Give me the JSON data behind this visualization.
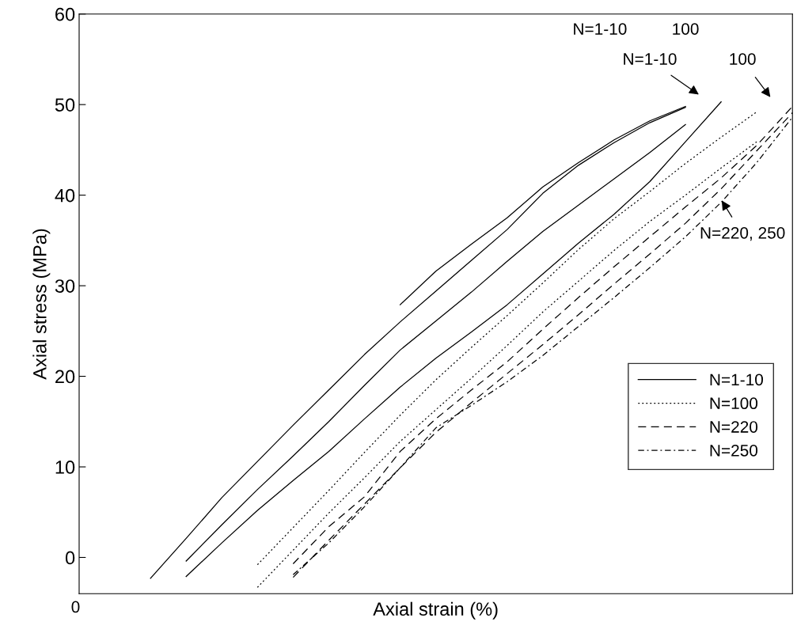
{
  "chart_data": {
    "type": "line",
    "xlabel": "Axial strain (%)",
    "ylabel": "Axial stress (MPa)",
    "categories": [
      null,
      null,
      null,
      null,
      null,
      null,
      null,
      null,
      null,
      null,
      null,
      null,
      null,
      null,
      null,
      null,
      null,
      null,
      null,
      null,
      null
    ],
    "ylim": [
      -4,
      60
    ],
    "yticks": [
      0,
      10,
      20,
      30,
      40,
      50,
      60
    ],
    "grid": false,
    "legend": "bottom right",
    "series": [
      {
        "name": "N=1-10",
        "color": "#000000",
        "line_style": "solid",
        "values": [
          null,
          null,
          -2.3,
          2.1,
          6.6,
          10.6,
          14.6,
          18.5,
          22.4,
          26.0,
          29.4,
          32.8,
          36.2,
          40.2,
          43.3,
          45.8,
          48.0,
          49.7,
          null,
          null,
          null
        ]
      },
      {
        "color": "#000000",
        "line_style": "solid",
        "values": [
          null,
          null,
          null,
          -0.4,
          3.6,
          7.5,
          11.2,
          15.0,
          19.0,
          22.9,
          26.1,
          29.3,
          32.7,
          36.0,
          38.9,
          41.8,
          44.7,
          47.8,
          null,
          null,
          null
        ]
      },
      {
        "color": "#000000",
        "line_style": "solid",
        "values": [
          null,
          null,
          null,
          -2.1,
          1.6,
          5.2,
          8.5,
          11.7,
          15.3,
          18.8,
          22.0,
          24.9,
          27.9,
          31.3,
          34.7,
          37.9,
          41.5,
          45.9,
          50.3,
          null,
          null
        ]
      },
      {
        "color": "#000000",
        "line_style": "solid",
        "values": [
          null,
          null,
          null,
          null,
          null,
          null,
          null,
          null,
          null,
          27.9,
          31.6,
          34.6,
          37.5,
          40.9,
          43.6,
          46.1,
          48.2,
          49.8,
          null,
          null,
          null
        ]
      },
      {
        "name": "N=100",
        "color": "#000000",
        "line_style": "dotted",
        "values": [
          null,
          null,
          null,
          null,
          null,
          -0.8,
          3.3,
          7.4,
          11.6,
          15.7,
          19.6,
          23.2,
          26.7,
          30.3,
          34.0,
          37.4,
          40.4,
          43.5,
          46.4,
          49.2,
          null
        ]
      },
      {
        "color": "#000000",
        "line_style": "dotted",
        "values": [
          null,
          null,
          null,
          null,
          null,
          -3.3,
          0.8,
          4.9,
          8.8,
          12.8,
          16.3,
          19.8,
          23.4,
          27.1,
          30.5,
          33.9,
          37.1,
          40.0,
          43.0,
          45.9,
          null
        ]
      },
      {
        "name": "N=220",
        "color": "#000000",
        "line_style": "dashed",
        "values": [
          null,
          null,
          null,
          null,
          null,
          null,
          -0.7,
          3.4,
          6.7,
          11.7,
          15.3,
          18.5,
          21.6,
          25.2,
          28.7,
          32.1,
          35.4,
          38.7,
          41.9,
          45.5,
          49.8
        ]
      },
      {
        "color": "#000000",
        "line_style": "dashed",
        "values": [
          null,
          null,
          null,
          null,
          null,
          null,
          -2.2,
          1.9,
          5.9,
          9.9,
          13.8,
          17.1,
          20.3,
          23.5,
          26.8,
          30.2,
          33.5,
          36.9,
          40.7,
          44.9,
          49.1
        ]
      },
      {
        "name": "N=250",
        "color": "#000000",
        "line_style": "dashdot",
        "values": [
          null,
          null,
          null,
          null,
          null,
          null,
          -1.9,
          1.6,
          5.6,
          9.9,
          14.3,
          16.8,
          19.4,
          22.3,
          25.5,
          28.7,
          32.0,
          35.4,
          39.2,
          43.6,
          48.6
        ]
      }
    ],
    "annotations": [
      "N=1-10",
      "100",
      "N=220, 250",
      "N=1-10",
      "100",
      "0"
    ]
  }
}
